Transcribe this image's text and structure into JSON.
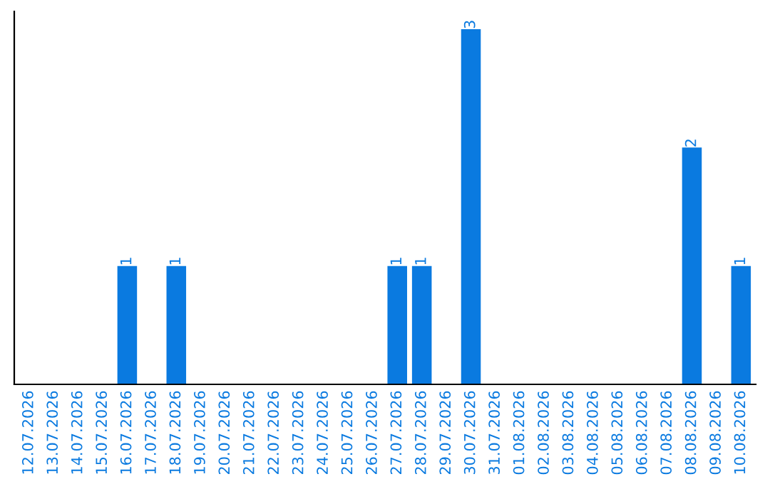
{
  "chart_data": {
    "type": "bar",
    "categories": [
      "12.07.2026",
      "13.07.2026",
      "14.07.2026",
      "15.07.2026",
      "16.07.2026",
      "17.07.2026",
      "18.07.2026",
      "19.07.2026",
      "20.07.2026",
      "21.07.2026",
      "22.07.2026",
      "23.07.2026",
      "24.07.2026",
      "25.07.2026",
      "26.07.2026",
      "27.07.2026",
      "28.07.2026",
      "29.07.2026",
      "30.07.2026",
      "31.07.2026",
      "01.08.2026",
      "02.08.2026",
      "03.08.2026",
      "04.08.2026",
      "05.08.2026",
      "06.08.2026",
      "07.08.2026",
      "08.08.2026",
      "09.08.2026",
      "10.08.2026"
    ],
    "values": [
      0,
      0,
      0,
      0,
      1,
      0,
      1,
      0,
      0,
      0,
      0,
      0,
      0,
      0,
      0,
      1,
      1,
      0,
      3,
      0,
      0,
      0,
      0,
      0,
      0,
      0,
      0,
      2,
      0,
      1
    ],
    "value_labels": [
      null,
      null,
      null,
      null,
      "1",
      null,
      "1",
      null,
      null,
      null,
      null,
      null,
      null,
      null,
      null,
      "1",
      "1",
      null,
      "3",
      null,
      null,
      null,
      null,
      null,
      null,
      null,
      null,
      "2",
      null,
      "1"
    ],
    "color": "#0a7ae0",
    "tick_labels": "x",
    "grid": false,
    "legend": false
  }
}
